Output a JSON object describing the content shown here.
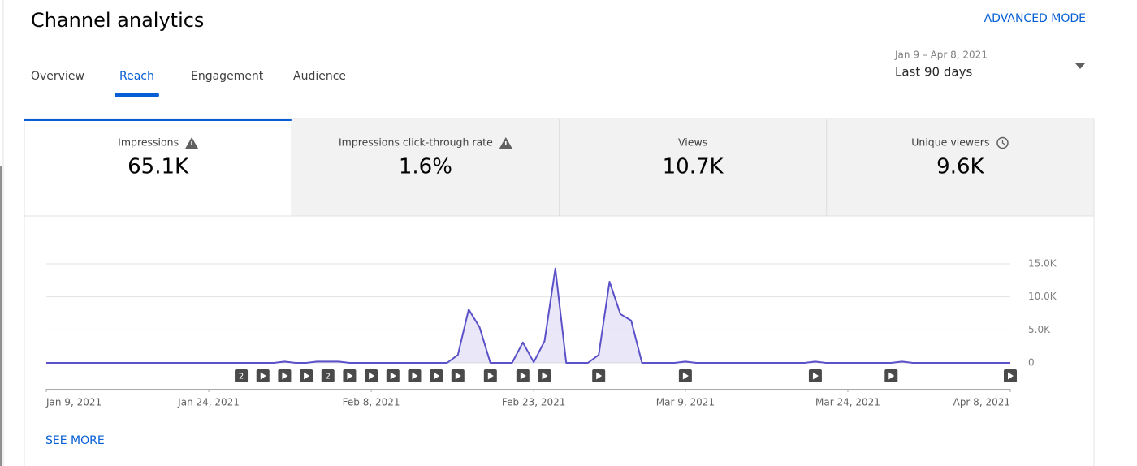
{
  "header": {
    "title": "Channel analytics",
    "advanced_mode": "ADVANCED MODE"
  },
  "tabs": [
    "Overview",
    "Reach",
    "Engagement",
    "Audience"
  ],
  "active_tab": 1,
  "date_range": {
    "range": "Jan 9 – Apr 8, 2021",
    "preset": "Last 90 days"
  },
  "metrics": [
    {
      "label": "Impressions",
      "value": "65.1K",
      "icon": "warning"
    },
    {
      "label": "Impressions click-through rate",
      "value": "1.6%",
      "icon": "warning"
    },
    {
      "label": "Views",
      "value": "10.7K"
    },
    {
      "label": "Unique viewers",
      "value": "9.6K",
      "icon": "clock"
    }
  ],
  "active_metric": 0,
  "chart_data": {
    "type": "area",
    "color": "#5b51c8",
    "x": [
      "2021-01-09",
      "2021-01-10",
      "2021-01-11",
      "2021-01-12",
      "2021-01-13",
      "2021-01-14",
      "2021-01-15",
      "2021-01-16",
      "2021-01-17",
      "2021-01-18",
      "2021-01-19",
      "2021-01-20",
      "2021-01-21",
      "2021-01-22",
      "2021-01-23",
      "2021-01-24",
      "2021-01-25",
      "2021-01-26",
      "2021-01-27",
      "2021-01-28",
      "2021-01-29",
      "2021-01-30",
      "2021-01-31",
      "2021-02-01",
      "2021-02-02",
      "2021-02-03",
      "2021-02-04",
      "2021-02-05",
      "2021-02-06",
      "2021-02-07",
      "2021-02-08",
      "2021-02-09",
      "2021-02-10",
      "2021-02-11",
      "2021-02-12",
      "2021-02-13",
      "2021-02-14",
      "2021-02-15",
      "2021-02-16",
      "2021-02-17",
      "2021-02-18",
      "2021-02-19",
      "2021-02-20",
      "2021-02-21",
      "2021-02-22",
      "2021-02-23",
      "2021-02-24",
      "2021-02-25",
      "2021-02-26",
      "2021-02-27",
      "2021-02-28",
      "2021-03-01",
      "2021-03-02",
      "2021-03-03",
      "2021-03-04",
      "2021-03-05",
      "2021-03-06",
      "2021-03-07",
      "2021-03-08",
      "2021-03-09",
      "2021-03-10",
      "2021-03-11",
      "2021-03-12",
      "2021-03-13",
      "2021-03-14",
      "2021-03-15",
      "2021-03-16",
      "2021-03-17",
      "2021-03-18",
      "2021-03-19",
      "2021-03-20",
      "2021-03-21",
      "2021-03-22",
      "2021-03-23",
      "2021-03-24",
      "2021-03-25",
      "2021-03-26",
      "2021-03-27",
      "2021-03-28",
      "2021-03-29",
      "2021-03-30",
      "2021-03-31",
      "2021-04-01",
      "2021-04-02",
      "2021-04-03",
      "2021-04-04",
      "2021-04-05",
      "2021-04-06",
      "2021-04-07",
      "2021-04-08"
    ],
    "values": [
      0,
      0,
      0,
      0,
      0,
      0,
      0,
      0,
      0,
      0,
      0,
      0,
      0,
      0,
      0,
      0,
      0,
      0,
      0,
      0,
      0,
      0,
      200,
      0,
      0,
      200,
      200,
      200,
      0,
      0,
      0,
      0,
      0,
      0,
      0,
      0,
      0,
      0,
      1200,
      8100,
      5400,
      0,
      0,
      0,
      3100,
      100,
      3300,
      14300,
      0,
      0,
      0,
      1200,
      12300,
      7400,
      6400,
      0,
      0,
      0,
      0,
      200,
      0,
      0,
      0,
      0,
      0,
      0,
      0,
      0,
      0,
      0,
      0,
      200,
      0,
      0,
      0,
      0,
      0,
      0,
      0,
      200,
      0,
      0,
      0,
      0,
      0,
      0,
      0,
      0,
      0,
      0
    ],
    "xlim": [
      "2021-01-09",
      "2021-04-08"
    ],
    "xticks": [
      {
        "value": "2021-01-09",
        "label": "Jan 9, 2021"
      },
      {
        "value": "2021-01-24",
        "label": "Jan 24, 2021"
      },
      {
        "value": "2021-02-08",
        "label": "Feb 8, 2021"
      },
      {
        "value": "2021-02-23",
        "label": "Feb 23, 2021"
      },
      {
        "value": "2021-03-09",
        "label": "Mar 9, 2021"
      },
      {
        "value": "2021-03-24",
        "label": "Mar 24, 2021"
      },
      {
        "value": "2021-04-08",
        "label": "Apr 8, 2021"
      }
    ],
    "ylim": [
      0,
      15000
    ],
    "yticks": [
      0,
      {
        "value": 5000,
        "label": "5.0K"
      },
      {
        "value": 10000,
        "label": "10.0K"
      },
      {
        "value": 15000,
        "label": "15.0K"
      }
    ],
    "grid": true,
    "markers": [
      {
        "x": "2021-01-27",
        "count": 2
      },
      {
        "x": "2021-01-29"
      },
      {
        "x": "2021-01-31"
      },
      {
        "x": "2021-02-02"
      },
      {
        "x": "2021-02-04",
        "count": 2
      },
      {
        "x": "2021-02-06"
      },
      {
        "x": "2021-02-08"
      },
      {
        "x": "2021-02-10"
      },
      {
        "x": "2021-02-12"
      },
      {
        "x": "2021-02-14"
      },
      {
        "x": "2021-02-16"
      },
      {
        "x": "2021-02-19"
      },
      {
        "x": "2021-02-22"
      },
      {
        "x": "2021-02-24"
      },
      {
        "x": "2021-03-01"
      },
      {
        "x": "2021-03-09"
      },
      {
        "x": "2021-03-21"
      },
      {
        "x": "2021-03-28"
      },
      {
        "x": "2021-04-08"
      }
    ]
  },
  "see_more": "SEE MORE"
}
